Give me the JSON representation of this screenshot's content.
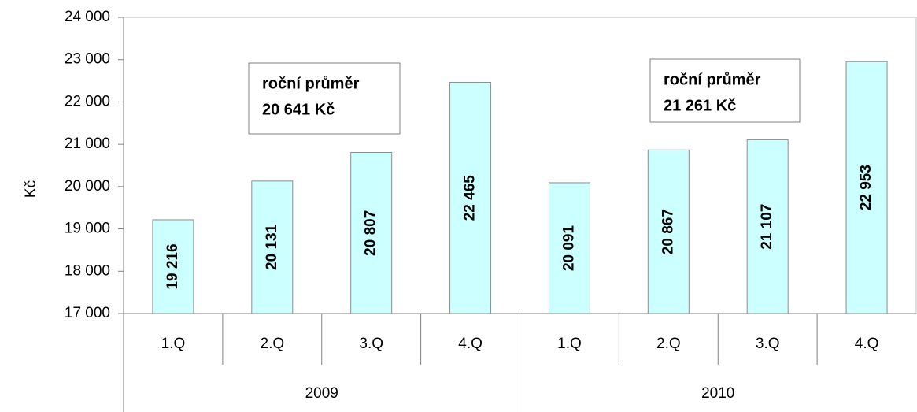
{
  "chart_data": {
    "type": "bar",
    "y_label": "Kč",
    "groups": [
      "2009",
      "2010"
    ],
    "categories": [
      "1.Q",
      "2.Q",
      "3.Q",
      "4.Q",
      "1.Q",
      "2.Q",
      "3.Q",
      "4.Q"
    ],
    "values": [
      19216,
      20131,
      20807,
      22465,
      20091,
      20867,
      21107,
      22953
    ],
    "value_labels": [
      "19 216",
      "20 131",
      "20 807",
      "22 465",
      "20 091",
      "20 867",
      "21 107",
      "22 953"
    ],
    "color": "#ccffff",
    "ylim": [
      17000,
      24000
    ],
    "yticks": [
      {
        "value": 17000,
        "label": "17 000"
      },
      {
        "value": 18000,
        "label": "18 000"
      },
      {
        "value": 19000,
        "label": "19 000"
      },
      {
        "value": 20000,
        "label": "20 000"
      },
      {
        "value": 21000,
        "label": "21 000"
      },
      {
        "value": 22000,
        "label": "22 000"
      },
      {
        "value": 23000,
        "label": "23 000"
      },
      {
        "value": 24000,
        "label": "24 000"
      }
    ],
    "annotations": [
      {
        "lines": [
          "roční průměr",
          "20 641 Kč"
        ]
      },
      {
        "lines": [
          "roční průměr",
          "21 261 Kč"
        ]
      }
    ]
  }
}
